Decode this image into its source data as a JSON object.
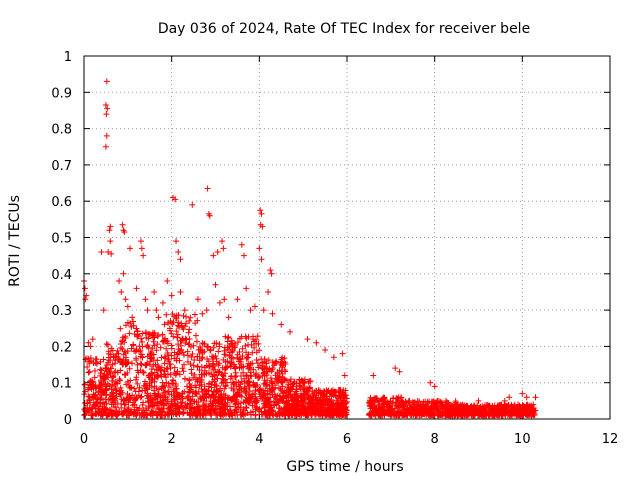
{
  "chart_data": {
    "type": "scatter",
    "title": "Day 036 of 2024, Rate Of TEC Index for receiver bele",
    "xlabel": "GPS time / hours",
    "ylabel": "ROTI / TECUs",
    "xlim": [
      0,
      12
    ],
    "ylim": [
      0,
      1
    ],
    "x_ticks": [
      "0",
      "2",
      "4",
      "6",
      "8",
      "10",
      "12"
    ],
    "y_ticks": [
      "0",
      "0.1",
      "0.2",
      "0.3",
      "0.4",
      "0.5",
      "0.6",
      "0.7",
      "0.8",
      "0.9",
      "1"
    ],
    "grid": true,
    "marker": "+",
    "color": "#ff0000",
    "series": [
      {
        "name": "ROTI",
        "points": [
          [
            0.52,
            0.93
          ],
          [
            0.5,
            0.865
          ],
          [
            0.53,
            0.855
          ],
          [
            0.51,
            0.84
          ],
          [
            0.52,
            0.78
          ],
          [
            0.5,
            0.75
          ],
          [
            2.03,
            0.61
          ],
          [
            2.08,
            0.605
          ],
          [
            2.82,
            0.635
          ],
          [
            2.85,
            0.565
          ],
          [
            2.87,
            0.56
          ],
          [
            2.47,
            0.59
          ],
          [
            4.02,
            0.575
          ],
          [
            4.05,
            0.565
          ],
          [
            4.03,
            0.535
          ],
          [
            4.07,
            0.53
          ],
          [
            0.6,
            0.53
          ],
          [
            0.58,
            0.52
          ],
          [
            0.88,
            0.535
          ],
          [
            0.9,
            0.52
          ],
          [
            0.92,
            0.515
          ],
          [
            0.6,
            0.49
          ],
          [
            0.4,
            0.46
          ],
          [
            0.55,
            0.46
          ],
          [
            0.62,
            0.455
          ],
          [
            1.05,
            0.47
          ],
          [
            1.3,
            0.49
          ],
          [
            1.32,
            0.47
          ],
          [
            1.35,
            0.45
          ],
          [
            2.1,
            0.49
          ],
          [
            2.15,
            0.46
          ],
          [
            2.2,
            0.44
          ],
          [
            2.95,
            0.45
          ],
          [
            3.05,
            0.46
          ],
          [
            3.15,
            0.49
          ],
          [
            3.18,
            0.47
          ],
          [
            3.6,
            0.48
          ],
          [
            3.65,
            0.45
          ],
          [
            4.0,
            0.47
          ],
          [
            4.05,
            0.44
          ],
          [
            4.25,
            0.41
          ],
          [
            4.28,
            0.4
          ],
          [
            0.0,
            0.38
          ],
          [
            0.02,
            0.36
          ],
          [
            0.05,
            0.34
          ],
          [
            0.03,
            0.33
          ],
          [
            0.2,
            0.22
          ],
          [
            0.15,
            0.2
          ],
          [
            0.1,
            0.21
          ],
          [
            0.45,
            0.3
          ],
          [
            0.8,
            0.38
          ],
          [
            0.85,
            0.35
          ],
          [
            0.9,
            0.4
          ],
          [
            0.95,
            0.33
          ],
          [
            1.0,
            0.31
          ],
          [
            1.1,
            0.28
          ],
          [
            1.2,
            0.36
          ],
          [
            1.4,
            0.33
          ],
          [
            1.45,
            0.3
          ],
          [
            1.6,
            0.35
          ],
          [
            1.65,
            0.3
          ],
          [
            1.7,
            0.28
          ],
          [
            1.8,
            0.32
          ],
          [
            1.9,
            0.38
          ],
          [
            2.0,
            0.34
          ],
          [
            2.2,
            0.35
          ],
          [
            2.3,
            0.3
          ],
          [
            2.4,
            0.27
          ],
          [
            2.6,
            0.33
          ],
          [
            2.7,
            0.29
          ],
          [
            2.8,
            0.3
          ],
          [
            3.0,
            0.37
          ],
          [
            3.1,
            0.32
          ],
          [
            3.2,
            0.33
          ],
          [
            3.3,
            0.28
          ],
          [
            3.5,
            0.33
          ],
          [
            3.7,
            0.36
          ],
          [
            3.8,
            0.3
          ],
          [
            3.9,
            0.31
          ],
          [
            4.1,
            0.3
          ],
          [
            4.2,
            0.35
          ],
          [
            4.3,
            0.29
          ],
          [
            4.5,
            0.26
          ],
          [
            4.7,
            0.24
          ],
          [
            5.1,
            0.22
          ],
          [
            5.3,
            0.21
          ],
          [
            5.5,
            0.19
          ],
          [
            5.7,
            0.17
          ],
          [
            5.9,
            0.18
          ],
          [
            5.95,
            0.12
          ],
          [
            7.1,
            0.14
          ],
          [
            7.2,
            0.13
          ],
          [
            6.6,
            0.12
          ],
          [
            7.9,
            0.1
          ],
          [
            8.0,
            0.09
          ],
          [
            9.0,
            0.05
          ],
          [
            9.6,
            0.05
          ],
          [
            9.7,
            0.06
          ],
          [
            10.0,
            0.07
          ],
          [
            10.1,
            0.06
          ],
          [
            10.3,
            0.06
          ]
        ]
      }
    ]
  }
}
